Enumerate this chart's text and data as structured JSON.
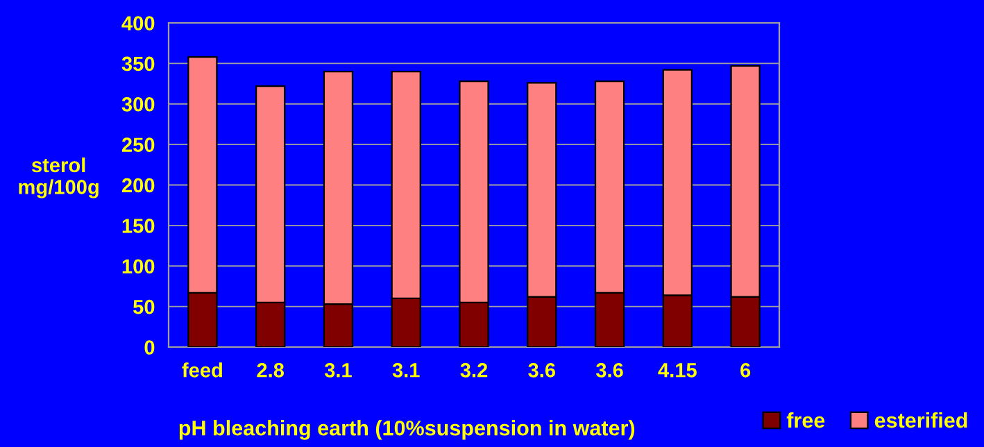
{
  "chart_data": {
    "type": "bar",
    "stacked": true,
    "xlabel": "pH bleaching earth (10%suspension in water)",
    "ylabel": "sterol\nmg/100g",
    "categories": [
      "feed",
      "2.8",
      "3.1",
      "3.1",
      "3.2",
      "3.6",
      "3.6",
      "4.15",
      "6"
    ],
    "series": [
      {
        "name": "free",
        "color": "#800000",
        "values": [
          67,
          55,
          53,
          60,
          55,
          62,
          67,
          64,
          62
        ]
      },
      {
        "name": "esterified",
        "color": "#ff8080",
        "values": [
          291,
          267,
          287,
          280,
          273,
          264,
          261,
          278,
          285
        ]
      }
    ],
    "ylim": [
      0,
      400
    ],
    "yticks": [
      0,
      50,
      100,
      150,
      200,
      250,
      300,
      350,
      400
    ],
    "grid": "y",
    "legend": "bottom right"
  }
}
